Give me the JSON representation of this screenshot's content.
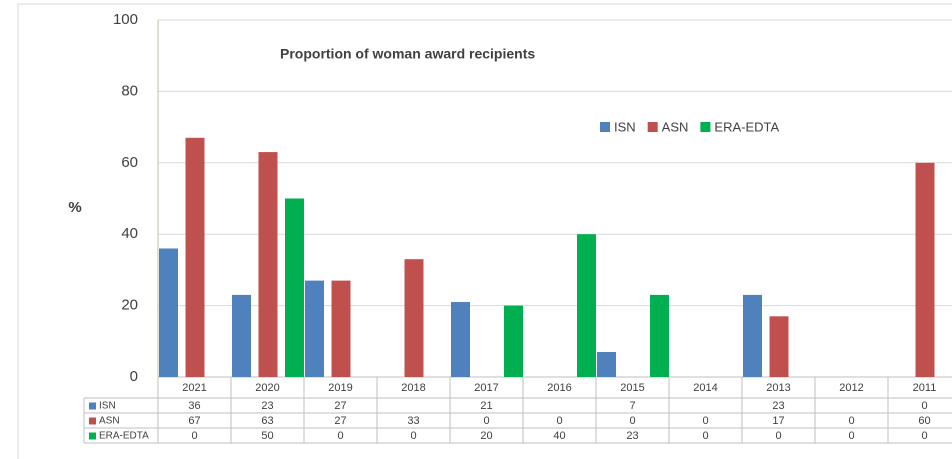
{
  "chart_data": {
    "type": "bar",
    "title": "Proportion of woman award recipients",
    "y_label": "%",
    "categories": [
      "2021",
      "2020",
      "2019",
      "2018",
      "2017",
      "2016",
      "2015",
      "2014",
      "2013",
      "2012",
      "2011"
    ],
    "series": [
      {
        "name": "ISN",
        "color": "#4f81bd",
        "values": [
          36,
          23,
          27,
          null,
          21,
          null,
          7,
          null,
          23,
          null,
          0
        ]
      },
      {
        "name": "ASN",
        "color": "#c0504d",
        "values": [
          67,
          63,
          27,
          33,
          0,
          0,
          0,
          0,
          17,
          0,
          60
        ]
      },
      {
        "name": "ERA-EDTA",
        "color": "#00b050",
        "values": [
          0,
          50,
          0,
          0,
          20,
          40,
          23,
          0,
          0,
          0,
          0
        ]
      }
    ],
    "ylim": [
      0,
      100
    ],
    "yticks": [
      0,
      20,
      40,
      60,
      80,
      100
    ],
    "grid": true,
    "legend": "top-right",
    "data_table": true
  }
}
